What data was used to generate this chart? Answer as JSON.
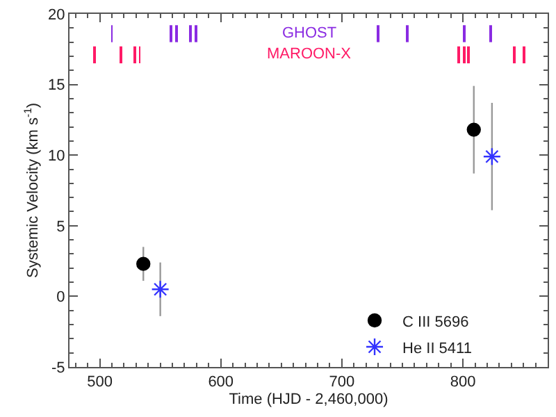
{
  "chart_data": {
    "type": "scatter",
    "xlabel": "Time (HJD - 2,460,000)",
    "ylabel": "Systemic Velocity (km s$^{-1}$)",
    "xlim": [
      475,
      870
    ],
    "xticks": [
      500,
      600,
      700,
      800
    ],
    "ylim": [
      -5,
      20
    ],
    "yticks": [
      -5,
      0,
      5,
      10,
      15,
      20
    ],
    "legend": "bottom",
    "series": [
      {
        "name": "C III 5696",
        "color": "#000000",
        "marker": "circle",
        "x": [
          536,
          809
        ],
        "values": [
          2.3,
          11.8
        ],
        "errors": [
          1.2,
          3.1
        ]
      },
      {
        "name": "He II 5411",
        "color": "#3333ff",
        "marker": "cross",
        "x": [
          550,
          824
        ],
        "values": [
          0.5,
          9.9
        ],
        "errors": [
          1.9,
          3.8
        ]
      },
      {
        "name": "GHOST",
        "type": "bar",
        "color": "#8a2be2",
        "x": [
          510,
          559,
          563,
          575,
          580,
          730,
          754,
          801,
          823
        ],
        "base": [
          18,
          18,
          18,
          18,
          18,
          18,
          18,
          18,
          18
        ],
        "values": [
          1.2,
          1.2,
          1.2,
          1.2,
          1.2,
          1.2,
          1.2,
          1.2,
          1.2
        ]
      },
      {
        "name": "MAROON-X",
        "type": "bar",
        "color": "#ff1a66",
        "x": [
          496,
          518,
          529,
          533,
          796,
          801,
          805,
          842,
          851
        ],
        "base": [
          16.5,
          16.5,
          16.5,
          16.5,
          16.5,
          16.5,
          16.5,
          16.5,
          16.5
        ],
        "values": [
          1.2,
          1.2,
          1.2,
          1.2,
          1.2,
          1.2,
          1.2,
          1.2,
          1.2
        ]
      }
    ]
  }
}
